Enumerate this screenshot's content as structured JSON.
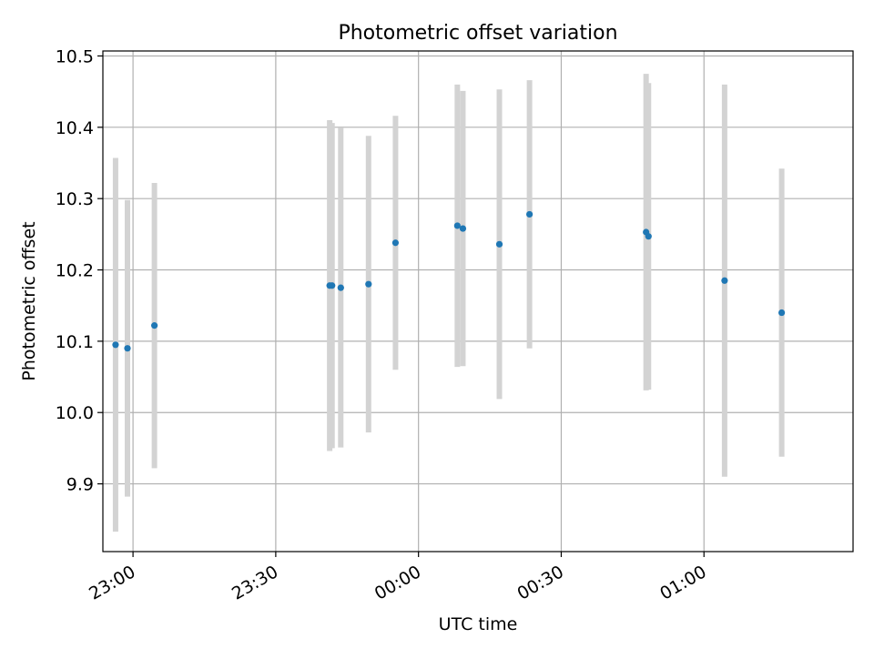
{
  "chart_data": {
    "type": "scatter",
    "title": "Photometric offset variation",
    "xlabel": "UTC time",
    "ylabel": "Photometric offset",
    "x_unit": "UTC time (HH:MM)",
    "xlim": [
      "22:53:40",
      "01:31:20"
    ],
    "ylim": [
      9.805,
      10.507
    ],
    "x_ticks": [
      "23:00",
      "23:30",
      "00:00",
      "00:30",
      "01:00"
    ],
    "y_ticks": [
      "9.9",
      "10.0",
      "10.1",
      "10.2",
      "10.3",
      "10.4",
      "10.5"
    ],
    "grid": true,
    "legend": "none",
    "colors": {
      "marker": "#1f77b4",
      "errorbar": "#d3d3d3",
      "grid": "#b0b0b0"
    },
    "points": [
      {
        "time": "22:56:20",
        "y": 10.095,
        "err": 0.262
      },
      {
        "time": "22:58:50",
        "y": 10.09,
        "err": 0.208
      },
      {
        "time": "23:04:30",
        "y": 10.122,
        "err": 0.2
      },
      {
        "time": "23:41:20",
        "y": 10.178,
        "err": 0.232
      },
      {
        "time": "23:41:50",
        "y": 10.178,
        "err": 0.228
      },
      {
        "time": "23:43:40",
        "y": 10.175,
        "err": 0.224
      },
      {
        "time": "23:49:30",
        "y": 10.18,
        "err": 0.208
      },
      {
        "time": "23:55:10",
        "y": 10.238,
        "err": 0.178
      },
      {
        "time": "00:08:10",
        "y": 10.262,
        "err": 0.198
      },
      {
        "time": "00:09:20",
        "y": 10.258,
        "err": 0.193
      },
      {
        "time": "00:17:00",
        "y": 10.236,
        "err": 0.217
      },
      {
        "time": "00:23:20",
        "y": 10.278,
        "err": 0.188
      },
      {
        "time": "00:47:50",
        "y": 10.253,
        "err": 0.222
      },
      {
        "time": "00:48:20",
        "y": 10.247,
        "err": 0.215
      },
      {
        "time": "01:04:20",
        "y": 10.185,
        "err": 0.275
      },
      {
        "time": "01:16:20",
        "y": 10.14,
        "err": 0.202
      }
    ]
  }
}
